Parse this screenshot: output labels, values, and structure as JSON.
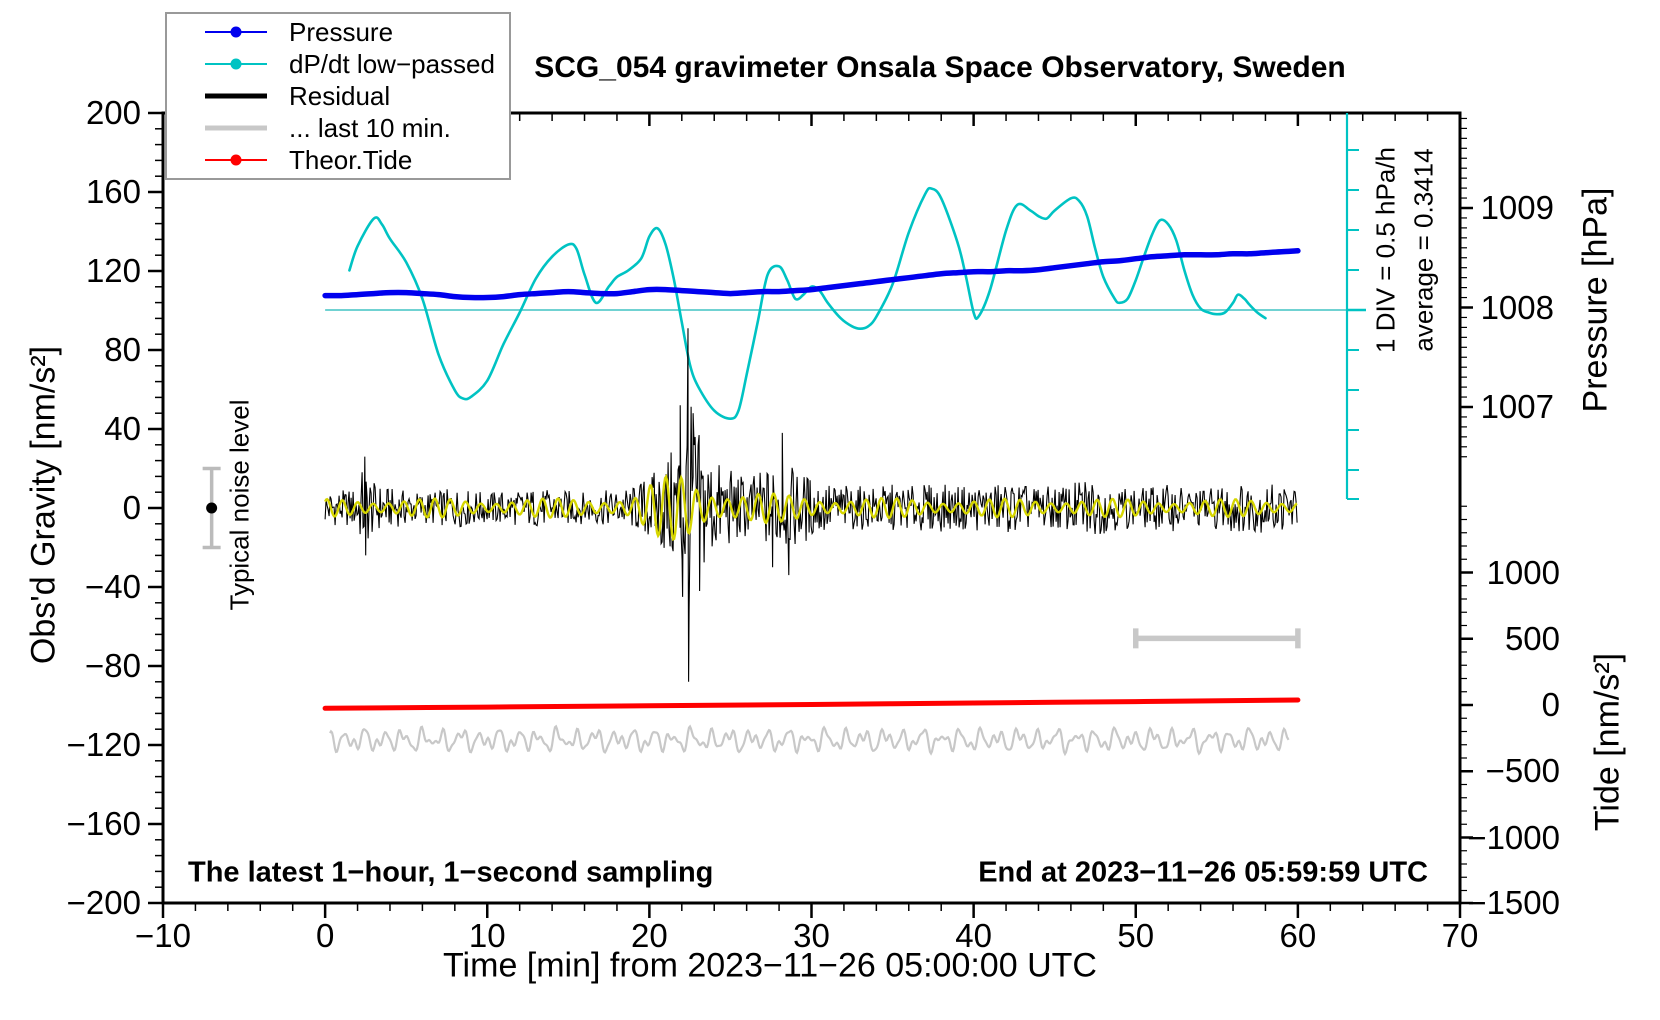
{
  "title": "SCG_054 gravimeter Onsala Space Observatory, Sweden",
  "annotations": {
    "sampling": "The latest 1−hour, 1−second sampling",
    "end_time": "End at 2023−11−26 05:59:59 UTC",
    "div_scale": "1 DIV = 0.5 hPa/h",
    "average": "average = 0.3414",
    "noise_marker_label": "Typical noise level"
  },
  "legend": {
    "items": [
      {
        "label": "Pressure",
        "color": "#0000ee",
        "style": "thin-dot"
      },
      {
        "label": "dP/dt low−passed",
        "color": "#00c3c3",
        "style": "thin-dot"
      },
      {
        "label": "Residual",
        "color": "#000000",
        "style": "thick"
      },
      {
        "label": "... last 10 min.",
        "color": "#c8c8c8",
        "style": "thick"
      },
      {
        "label": "Theor.Tide",
        "color": "#ff0000",
        "style": "thin-dot"
      }
    ]
  },
  "colors": {
    "pressure": "#0000ee",
    "dpdt": "#00c3c3",
    "dpdt_avg_line": "#70d2d2",
    "residual": "#000000",
    "residual_filtered": "#d6d600",
    "last10": "#c8c8c8",
    "tide": "#ff0000",
    "marker_gray": "#bbbbbb",
    "frame": "#000000"
  },
  "chart_data": {
    "type": "line",
    "title": "SCG_054 gravimeter Onsala Space Observatory, Sweden",
    "grid": false,
    "legend_position": "top-left",
    "x_axis": {
      "label": "Time [min] from 2023−11−26 05:00:00 UTC",
      "min": -10,
      "max": 70,
      "major_ticks": [
        -10,
        0,
        10,
        20,
        30,
        40,
        50,
        60,
        70
      ],
      "tick_labels": [
        "−10",
        "0",
        "10",
        "20",
        "30",
        "40",
        "50",
        "60",
        "70"
      ],
      "minor_step": 2
    },
    "y_left_axis": {
      "label": "Obs'd Gravity [nm/s²]",
      "min": -200,
      "max": 200,
      "major_ticks": [
        200,
        160,
        120,
        80,
        40,
        0,
        -40,
        -80,
        -120,
        -160,
        -200
      ],
      "tick_labels": [
        "200",
        "160",
        "120",
        "80",
        "40",
        "0",
        "−40",
        "−80",
        "−120",
        "−160",
        "−200"
      ],
      "minor_step": 8
    },
    "y_pressure_axis": {
      "label": "Pressure [hPa]",
      "major_ticks": [
        1009,
        1008,
        1007
      ],
      "tick_labels": [
        "1009",
        "1008",
        "1007"
      ],
      "minor_step": 0.1,
      "shown_range": [
        1006.5,
        1009.9
      ]
    },
    "y_tide_axis": {
      "label": "Tide [nm/s²]",
      "major_ticks": [
        1000,
        500,
        0,
        -500,
        -1000,
        -1500
      ],
      "tick_labels": [
        "1000",
        "500",
        "0",
        "−500",
        "−1000",
        "−1500"
      ],
      "minor_step": 100,
      "shown_range": [
        -1500,
        1500
      ]
    },
    "dpdt_reference": {
      "average_hPa_per_h": 0.3414,
      "div_hPa_per_h": 0.5
    },
    "series": {
      "pressure": {
        "name": "Pressure",
        "units": "hPa",
        "t_start": 0,
        "t_step": 1,
        "values": [
          1008.12,
          1008.12,
          1008.13,
          1008.14,
          1008.15,
          1008.15,
          1008.14,
          1008.13,
          1008.11,
          1008.1,
          1008.1,
          1008.11,
          1008.13,
          1008.14,
          1008.15,
          1008.16,
          1008.15,
          1008.14,
          1008.14,
          1008.16,
          1008.18,
          1008.18,
          1008.17,
          1008.16,
          1008.15,
          1008.14,
          1008.15,
          1008.16,
          1008.16,
          1008.17,
          1008.18,
          1008.2,
          1008.22,
          1008.24,
          1008.26,
          1008.28,
          1008.3,
          1008.32,
          1008.34,
          1008.35,
          1008.36,
          1008.36,
          1008.37,
          1008.37,
          1008.38,
          1008.4,
          1008.42,
          1008.44,
          1008.46,
          1008.47,
          1008.49,
          1008.51,
          1008.52,
          1008.53,
          1008.53,
          1008.53,
          1008.54,
          1008.54,
          1008.55,
          1008.56,
          1008.57
        ]
      },
      "dpdt": {
        "name": "dP/dt low−passed",
        "units": "hPa/h",
        "points": [
          [
            1.5,
            0.83
          ],
          [
            2,
            1.13
          ],
          [
            3,
            1.47
          ],
          [
            3.5,
            1.4
          ],
          [
            4,
            1.22
          ],
          [
            5,
            0.93
          ],
          [
            6,
            0.48
          ],
          [
            7,
            -0.21
          ],
          [
            8,
            -0.65
          ],
          [
            8.5,
            -0.75
          ],
          [
            9,
            -0.73
          ],
          [
            10,
            -0.53
          ],
          [
            11,
            -0.08
          ],
          [
            12,
            0.31
          ],
          [
            13,
            0.73
          ],
          [
            14,
            1.0
          ],
          [
            15,
            1.15
          ],
          [
            15.5,
            1.1
          ],
          [
            16,
            0.78
          ],
          [
            16.7,
            0.43
          ],
          [
            17.5,
            0.63
          ],
          [
            18,
            0.75
          ],
          [
            18.7,
            0.83
          ],
          [
            19.5,
            0.98
          ],
          [
            20,
            1.25
          ],
          [
            20.5,
            1.35
          ],
          [
            21,
            1.15
          ],
          [
            21.5,
            0.73
          ],
          [
            22,
            0.19
          ],
          [
            22.5,
            -0.33
          ],
          [
            23,
            -0.6
          ],
          [
            24,
            -0.9
          ],
          [
            25,
            -1.0
          ],
          [
            25.5,
            -0.9
          ],
          [
            26,
            -0.46
          ],
          [
            26.7,
            0.21
          ],
          [
            27.3,
            0.78
          ],
          [
            28,
            0.88
          ],
          [
            28.5,
            0.71
          ],
          [
            29,
            0.48
          ],
          [
            29.5,
            0.53
          ],
          [
            30,
            0.63
          ],
          [
            30.5,
            0.58
          ],
          [
            31,
            0.43
          ],
          [
            31.8,
            0.24
          ],
          [
            32.5,
            0.14
          ],
          [
            33,
            0.11
          ],
          [
            33.5,
            0.14
          ],
          [
            34,
            0.26
          ],
          [
            35,
            0.66
          ],
          [
            36,
            1.3
          ],
          [
            37,
            1.77
          ],
          [
            37.4,
            1.84
          ],
          [
            38,
            1.72
          ],
          [
            39,
            1.18
          ],
          [
            39.5,
            0.78
          ],
          [
            40,
            0.31
          ],
          [
            40.3,
            0.26
          ],
          [
            41,
            0.58
          ],
          [
            42,
            1.32
          ],
          [
            42.7,
            1.64
          ],
          [
            43.5,
            1.57
          ],
          [
            44,
            1.5
          ],
          [
            44.5,
            1.47
          ],
          [
            45,
            1.57
          ],
          [
            46,
            1.72
          ],
          [
            46.5,
            1.69
          ],
          [
            47,
            1.5
          ],
          [
            47.5,
            1.1
          ],
          [
            48,
            0.75
          ],
          [
            48.7,
            0.48
          ],
          [
            49,
            0.43
          ],
          [
            49.5,
            0.48
          ],
          [
            50,
            0.71
          ],
          [
            50.5,
            1.0
          ],
          [
            51,
            1.27
          ],
          [
            51.5,
            1.45
          ],
          [
            52,
            1.4
          ],
          [
            52.5,
            1.2
          ],
          [
            53,
            0.83
          ],
          [
            53.5,
            0.53
          ],
          [
            54,
            0.36
          ],
          [
            54.5,
            0.31
          ],
          [
            55,
            0.29
          ],
          [
            55.5,
            0.31
          ],
          [
            56,
            0.43
          ],
          [
            56.3,
            0.53
          ],
          [
            56.7,
            0.48
          ],
          [
            57,
            0.41
          ],
          [
            57.5,
            0.31
          ],
          [
            58,
            0.24
          ]
        ]
      },
      "theor_tide": {
        "name": "Theor.Tide",
        "units": "nm/s² (tide axis)",
        "points": [
          [
            0,
            -25
          ],
          [
            10,
            -16
          ],
          [
            20,
            -6
          ],
          [
            30,
            4
          ],
          [
            40,
            15
          ],
          [
            50,
            26
          ],
          [
            60,
            38
          ]
        ]
      },
      "residual": {
        "name": "Residual",
        "units": "nm/s²",
        "envelope_points": [
          [
            0,
            9
          ],
          [
            1,
            9
          ],
          [
            1.8,
            10
          ],
          [
            2.3,
            20
          ],
          [
            2.7,
            18
          ],
          [
            3,
            13
          ],
          [
            4,
            10
          ],
          [
            5,
            9
          ],
          [
            6,
            8
          ],
          [
            7,
            9
          ],
          [
            8,
            10
          ],
          [
            9,
            9
          ],
          [
            10,
            8
          ],
          [
            11,
            9
          ],
          [
            12,
            9
          ],
          [
            13,
            10
          ],
          [
            14,
            9
          ],
          [
            15,
            9
          ],
          [
            16,
            8
          ],
          [
            17,
            9
          ],
          [
            18,
            9
          ],
          [
            19,
            11
          ],
          [
            20,
            17
          ],
          [
            20.5,
            20
          ],
          [
            21,
            26
          ],
          [
            21.5,
            31
          ],
          [
            22,
            44
          ],
          [
            22.4,
            58
          ],
          [
            22.8,
            46
          ],
          [
            23.2,
            36
          ],
          [
            23.6,
            30
          ],
          [
            24,
            25
          ],
          [
            24.5,
            22
          ],
          [
            25,
            20
          ],
          [
            26,
            16
          ],
          [
            27,
            19
          ],
          [
            27.5,
            22
          ],
          [
            28,
            23
          ],
          [
            28.5,
            21
          ],
          [
            29,
            20
          ],
          [
            29.5,
            18
          ],
          [
            30,
            16
          ],
          [
            31,
            13
          ],
          [
            32,
            12
          ],
          [
            33,
            11
          ],
          [
            34,
            11
          ],
          [
            35,
            12
          ],
          [
            36,
            11
          ],
          [
            37,
            12
          ],
          [
            38,
            12
          ],
          [
            39,
            11
          ],
          [
            40,
            12
          ],
          [
            41,
            12
          ],
          [
            42,
            13
          ],
          [
            43,
            12
          ],
          [
            44,
            11
          ],
          [
            45,
            11
          ],
          [
            46,
            12
          ],
          [
            47,
            16
          ],
          [
            48,
            13
          ],
          [
            49,
            11
          ],
          [
            50,
            10
          ],
          [
            51,
            11
          ],
          [
            52,
            12
          ],
          [
            53,
            11
          ],
          [
            54,
            10
          ],
          [
            55,
            11
          ],
          [
            56,
            13
          ],
          [
            57,
            12
          ],
          [
            58,
            13
          ],
          [
            59,
            12
          ],
          [
            60,
            11
          ]
        ],
        "spikes": [
          [
            2.45,
            26
          ],
          [
            2.5,
            -24
          ],
          [
            21.9,
            52
          ],
          [
            22.05,
            -45
          ],
          [
            22.38,
            91
          ],
          [
            22.42,
            -88
          ],
          [
            22.7,
            48
          ],
          [
            23.1,
            -42
          ],
          [
            27.6,
            -30
          ],
          [
            28.2,
            38
          ],
          [
            28.6,
            -34
          ]
        ]
      },
      "residual_filtered_overlay": {
        "name": "band-passed residual (yellow overlay)",
        "units": "nm/s²",
        "period_min": 0.95,
        "envelope_points": [
          [
            0,
            4.5
          ],
          [
            5,
            5
          ],
          [
            10,
            4.5
          ],
          [
            15,
            5
          ],
          [
            19,
            6
          ],
          [
            20,
            12
          ],
          [
            21,
            16
          ],
          [
            22,
            18
          ],
          [
            22.5,
            17
          ],
          [
            23,
            14
          ],
          [
            24,
            11
          ],
          [
            25,
            9
          ],
          [
            26,
            8
          ],
          [
            27,
            8
          ],
          [
            28,
            7
          ],
          [
            30,
            6
          ],
          [
            32,
            5.5
          ],
          [
            35,
            5
          ],
          [
            40,
            4.5
          ],
          [
            45,
            5
          ],
          [
            50,
            4.5
          ],
          [
            55,
            4.5
          ],
          [
            60,
            4.5
          ]
        ]
      },
      "last10_expanded": {
        "name": "... last 10 min. (expanded to full width)",
        "center_nm_s2": -117.5,
        "amplitude_nm_s2": 8,
        "t_range": [
          0.3,
          59.5
        ]
      },
      "last10_segment_bar": {
        "t_start": 50,
        "t_end": 60,
        "level_nm_s2": -66
      },
      "noise_marker": {
        "t": -7,
        "value": 0,
        "error": 20,
        "label": "Typical noise level"
      }
    }
  }
}
